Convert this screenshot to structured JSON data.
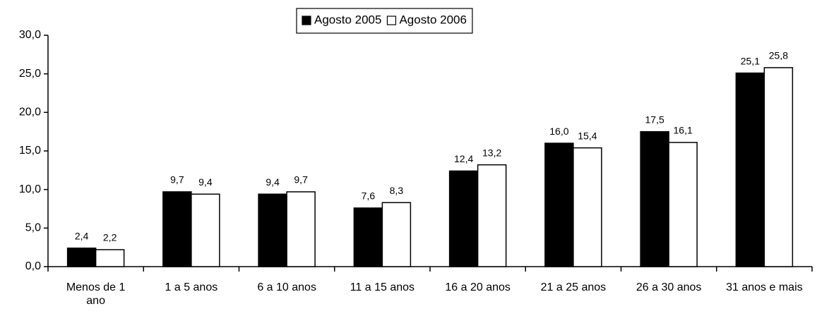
{
  "chart_data": {
    "type": "bar",
    "categories": [
      "Menos de 1 ano",
      "1 a 5 anos",
      "6 a 10 anos",
      "11 a 15 anos",
      "16 a 20 anos",
      "21 a 25 anos",
      "26 a 30 anos",
      "31 anos e mais"
    ],
    "series": [
      {
        "name": "Agosto 2005",
        "color": "#000000",
        "values": [
          2.4,
          9.7,
          9.4,
          7.6,
          12.4,
          16.0,
          17.5,
          25.1
        ],
        "value_labels": [
          "2,4",
          "9,7",
          "9,4",
          "7,6",
          "12,4",
          "16,0",
          "17,5",
          "25,1"
        ]
      },
      {
        "name": "Agosto 2006",
        "color": "#ffffff",
        "values": [
          2.2,
          9.4,
          9.7,
          8.3,
          13.2,
          15.4,
          16.1,
          25.8
        ],
        "value_labels": [
          "2,2",
          "9,4",
          "9,7",
          "8,3",
          "13,2",
          "15,4",
          "16,1",
          "25,8"
        ]
      }
    ],
    "ylim": [
      0,
      30
    ],
    "yticks": [
      {
        "value": 0,
        "label": "0,0"
      },
      {
        "value": 5,
        "label": "5,0"
      },
      {
        "value": 10,
        "label": "10,0"
      },
      {
        "value": 15,
        "label": "15,0"
      },
      {
        "value": 20,
        "label": "20,0"
      },
      {
        "value": 25,
        "label": "25,0"
      },
      {
        "value": 30,
        "label": "30,0"
      }
    ],
    "legend": "top"
  }
}
